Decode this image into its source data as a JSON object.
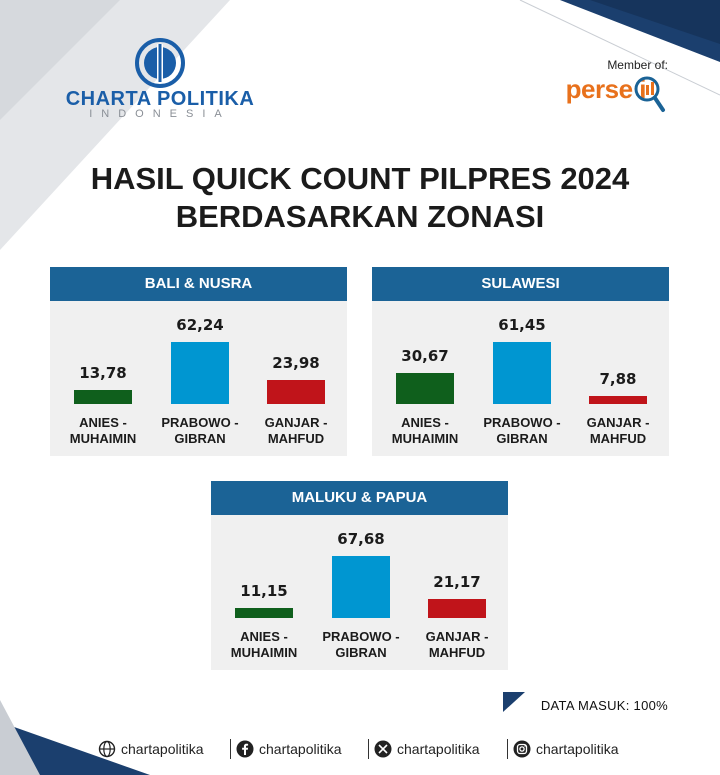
{
  "header": {
    "logo_main": "CHARTA POLITIKA",
    "logo_sub": "INDONESIA",
    "member_label": "Member of:",
    "member_brand": "perse i"
  },
  "title": {
    "line1": "HASIL QUICK COUNT PILPRES 2024",
    "line2": "BERDASARKAN ZONASI"
  },
  "colors": {
    "anies": "#0f5f1c",
    "prabowo": "#0096d1",
    "ganjar": "#c0141a",
    "panel_header": "#1b6396"
  },
  "chart_data": [
    {
      "type": "bar",
      "title": "BALI & NUSRA",
      "categories": [
        "ANIES -\nMUHAIMIN",
        "PRABOWO -\nGIBRAN",
        "GANJAR -\nMAHFUD"
      ],
      "values": [
        13.78,
        62.24,
        23.98
      ],
      "labels": [
        "13,78",
        "62,24",
        "23,98"
      ],
      "ylim": [
        0,
        70
      ]
    },
    {
      "type": "bar",
      "title": "SULAWESI",
      "categories": [
        "ANIES -\nMUHAIMIN",
        "PRABOWO -\nGIBRAN",
        "GANJAR -\nMAHFUD"
      ],
      "values": [
        30.67,
        61.45,
        7.88
      ],
      "labels": [
        "30,67",
        "61,45",
        "7,88"
      ],
      "ylim": [
        0,
        70
      ]
    },
    {
      "type": "bar",
      "title": "MALUKU & PAPUA",
      "categories": [
        "ANIES -\nMUHAIMIN",
        "PRABOWO -\nGIBRAN",
        "GANJAR -\nMAHFUD"
      ],
      "values": [
        11.15,
        67.68,
        21.17
      ],
      "labels": [
        "11,15",
        "67,68",
        "21,17"
      ],
      "ylim": [
        0,
        70
      ]
    }
  ],
  "data_masuk": "DATA MASUK: 100%",
  "footer": {
    "items": [
      {
        "icon": "globe-icon",
        "handle": "chartapolitika"
      },
      {
        "icon": "facebook-icon",
        "handle": "chartapolitika"
      },
      {
        "icon": "x-icon",
        "handle": "chartapolitika"
      },
      {
        "icon": "instagram-icon",
        "handle": "chartapolitika"
      }
    ]
  }
}
